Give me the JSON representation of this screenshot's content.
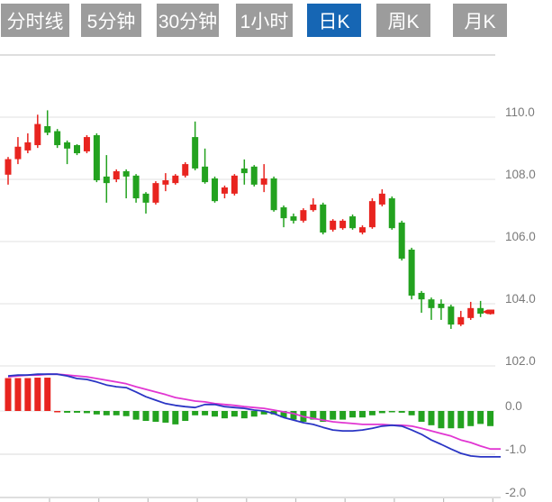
{
  "tabs": {
    "inactive_bg": "#9c9c9c",
    "active_bg": "#1666b4",
    "text_color": "#ffffff",
    "items": [
      {
        "label": "分时线",
        "active": false
      },
      {
        "label": "5分钟",
        "active": false
      },
      {
        "label": "30分钟",
        "active": false
      },
      {
        "label": "1小时",
        "active": false
      },
      {
        "label": "日K",
        "active": true
      },
      {
        "label": "周K",
        "active": false
      },
      {
        "label": "月K",
        "active": false
      }
    ]
  },
  "chart_data": {
    "type": "candlestick",
    "title": "",
    "legend_position": "none",
    "grid": true,
    "price_axis": {
      "side": "right",
      "tick_labels": [
        "110.0",
        "108.0",
        "106.0",
        "104.0",
        "102.0"
      ],
      "tick_values": [
        110.0,
        108.0,
        106.0,
        104.0,
        102.0
      ],
      "range": [
        101.8,
        112.0
      ]
    },
    "macd_axis": {
      "side": "right",
      "tick_labels": [
        "0.0",
        "-1.0",
        "-2.0"
      ],
      "tick_values": [
        0.0,
        -1.0,
        -2.0
      ],
      "range": [
        1.0,
        -2.1
      ]
    },
    "up_color": "#e8241f",
    "down_color": "#23a21f",
    "dif_color": "#2a35c4",
    "dea_color": "#e136d2",
    "grid_color": "#e6e6e6",
    "axis_text_color": "#7a7a7a",
    "candles_ohlc": [
      [
        108.15,
        108.72,
        107.83,
        108.65
      ],
      [
        108.65,
        109.36,
        108.49,
        109.05
      ],
      [
        108.93,
        109.48,
        108.84,
        109.19
      ],
      [
        109.1,
        110.08,
        109.01,
        109.78
      ],
      [
        109.71,
        110.22,
        109.42,
        109.5
      ],
      [
        109.55,
        109.62,
        109.01,
        109.1
      ],
      [
        109.19,
        109.25,
        108.49,
        108.99
      ],
      [
        109.1,
        109.13,
        108.78,
        108.84
      ],
      [
        108.9,
        109.42,
        108.84,
        109.36
      ],
      [
        109.42,
        109.48,
        107.91,
        107.97
      ],
      [
        108.09,
        108.78,
        107.25,
        107.88
      ],
      [
        108.0,
        108.32,
        107.91,
        108.26
      ],
      [
        108.26,
        108.32,
        107.39,
        108.09
      ],
      [
        108.12,
        108.17,
        107.25,
        107.39
      ],
      [
        107.54,
        107.59,
        106.9,
        107.25
      ],
      [
        107.25,
        107.94,
        107.19,
        107.88
      ],
      [
        107.83,
        108.2,
        107.62,
        107.97
      ],
      [
        107.88,
        108.17,
        107.83,
        108.12
      ],
      [
        108.12,
        108.55,
        108.06,
        108.49
      ],
      [
        109.36,
        109.86,
        108.29,
        108.35
      ],
      [
        108.41,
        108.99,
        107.86,
        107.91
      ],
      [
        108.03,
        108.09,
        107.25,
        107.3
      ],
      [
        107.54,
        107.8,
        107.39,
        107.74
      ],
      [
        107.54,
        108.17,
        107.48,
        108.12
      ],
      [
        108.35,
        108.64,
        107.83,
        108.2
      ],
      [
        108.41,
        108.46,
        107.77,
        107.83
      ],
      [
        107.83,
        108.49,
        107.59,
        108.03
      ],
      [
        108.03,
        108.09,
        106.96,
        107.01
      ],
      [
        107.1,
        107.16,
        106.46,
        106.75
      ],
      [
        106.81,
        106.9,
        106.58,
        106.67
      ],
      [
        106.67,
        107.07,
        106.61,
        107.01
      ],
      [
        107.01,
        107.39,
        106.96,
        107.19
      ],
      [
        107.19,
        107.25,
        106.23,
        106.29
      ],
      [
        106.38,
        106.72,
        106.32,
        106.67
      ],
      [
        106.43,
        106.72,
        106.38,
        106.67
      ],
      [
        106.81,
        106.87,
        106.38,
        106.43
      ],
      [
        106.29,
        106.52,
        106.23,
        106.46
      ],
      [
        106.46,
        107.39,
        106.41,
        107.3
      ],
      [
        107.19,
        107.68,
        107.13,
        107.54
      ],
      [
        107.39,
        107.45,
        106.38,
        106.43
      ],
      [
        106.61,
        106.67,
        105.39,
        105.45
      ],
      [
        105.74,
        105.8,
        104.14,
        104.26
      ],
      [
        104.35,
        104.41,
        103.71,
        104.14
      ],
      [
        104.14,
        104.2,
        103.48,
        103.86
      ],
      [
        104.0,
        104.14,
        103.48,
        103.86
      ],
      [
        103.91,
        103.97,
        103.19,
        103.33
      ],
      [
        103.33,
        103.77,
        103.28,
        103.57
      ],
      [
        103.54,
        104.06,
        103.48,
        103.86
      ],
      [
        103.86,
        104.09,
        103.57,
        103.68
      ],
      [
        103.68,
        103.8,
        103.65,
        103.74
      ]
    ],
    "macd": {
      "histogram": [
        0.76,
        0.76,
        0.76,
        0.77,
        0.77,
        -0.03,
        -0.04,
        -0.04,
        -0.05,
        -0.08,
        -0.1,
        -0.1,
        -0.12,
        -0.2,
        -0.23,
        -0.25,
        -0.27,
        -0.31,
        -0.23,
        -0.1,
        -0.1,
        -0.13,
        -0.17,
        -0.13,
        -0.17,
        -0.13,
        -0.08,
        -0.08,
        -0.15,
        -0.2,
        -0.25,
        -0.2,
        -0.25,
        -0.2,
        -0.2,
        -0.15,
        -0.15,
        -0.1,
        -0.05,
        -0.02,
        -0.04,
        -0.1,
        -0.25,
        -0.33,
        -0.4,
        -0.4,
        -0.4,
        -0.35,
        -0.3,
        -0.35
      ],
      "histogram_bar_colors": [
        "r",
        "r",
        "r",
        "r",
        "r",
        "r",
        "g",
        "g",
        "g",
        "g",
        "g",
        "g",
        "g",
        "g",
        "g",
        "g",
        "g",
        "g",
        "g",
        "g",
        "g",
        "g",
        "g",
        "g",
        "g",
        "g",
        "g",
        "g",
        "g",
        "g",
        "g",
        "g",
        "g",
        "g",
        "g",
        "g",
        "g",
        "g",
        "g",
        "g",
        "g",
        "g",
        "g",
        "g",
        "g",
        "g",
        "g",
        "g",
        "g",
        "g"
      ],
      "dif": [
        0.81,
        0.83,
        0.83,
        0.85,
        0.85,
        0.85,
        0.81,
        0.75,
        0.73,
        0.67,
        0.6,
        0.56,
        0.54,
        0.44,
        0.33,
        0.25,
        0.17,
        0.13,
        0.1,
        0.08,
        0.15,
        0.15,
        0.1,
        0.08,
        0.06,
        0.02,
        0.0,
        -0.06,
        -0.15,
        -0.21,
        -0.27,
        -0.31,
        -0.38,
        -0.44,
        -0.46,
        -0.46,
        -0.44,
        -0.4,
        -0.35,
        -0.33,
        -0.35,
        -0.44,
        -0.54,
        -0.67,
        -0.77,
        -0.88,
        -0.98,
        -1.04,
        -1.06,
        -1.06
      ],
      "dea": [
        0.79,
        0.81,
        0.83,
        0.83,
        0.85,
        0.85,
        0.83,
        0.81,
        0.79,
        0.75,
        0.71,
        0.67,
        0.63,
        0.56,
        0.5,
        0.44,
        0.38,
        0.31,
        0.27,
        0.23,
        0.21,
        0.17,
        0.15,
        0.13,
        0.1,
        0.08,
        0.06,
        0.02,
        -0.02,
        -0.06,
        -0.13,
        -0.17,
        -0.21,
        -0.25,
        -0.27,
        -0.29,
        -0.31,
        -0.31,
        -0.31,
        -0.33,
        -0.33,
        -0.35,
        -0.4,
        -0.46,
        -0.52,
        -0.58,
        -0.67,
        -0.73,
        -0.81,
        -0.88
      ]
    },
    "last_price": 103.74
  }
}
